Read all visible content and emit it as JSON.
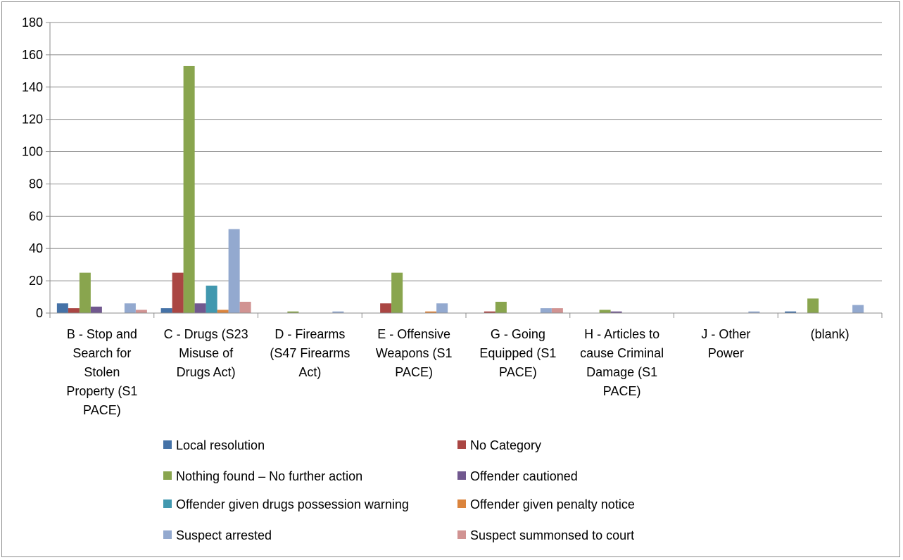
{
  "chart_data": {
    "type": "bar",
    "title": "",
    "xlabel": "",
    "ylabel": "",
    "ylim": [
      0,
      180
    ],
    "yticks": [
      0,
      20,
      40,
      60,
      80,
      100,
      120,
      140,
      160,
      180
    ],
    "grid": true,
    "legend_position": "bottom",
    "categories": [
      "B - Stop and Search for Stolen Property (S1 PACE)",
      "C - Drugs (S23 Misuse of Drugs Act)",
      "D - Firearms (S47 Firearms Act)",
      "E - Offensive Weapons (S1 PACE)",
      "G - Going Equipped (S1 PACE)",
      "H - Articles to cause Criminal Damage (S1 PACE)",
      "J - Other Power",
      "(blank)"
    ],
    "category_label_lines": [
      [
        "B - Stop and",
        "Search for",
        "Stolen",
        "Property (S1",
        "PACE)"
      ],
      [
        "C - Drugs (S23",
        "Misuse of",
        "Drugs Act)"
      ],
      [
        "D - Firearms",
        "(S47 Firearms",
        "Act)"
      ],
      [
        "E - Offensive",
        "Weapons (S1",
        "PACE)"
      ],
      [
        "G - Going",
        "Equipped (S1",
        "PACE)"
      ],
      [
        "H - Articles to",
        "cause Criminal",
        "Damage (S1",
        "PACE)"
      ],
      [
        "J - Other",
        "Power"
      ],
      [
        "(blank)"
      ]
    ],
    "series": [
      {
        "name": "Local resolution",
        "color": "#4572a7",
        "values": [
          6,
          3,
          0,
          0,
          0,
          0,
          0,
          1
        ]
      },
      {
        "name": "No Category",
        "color": "#aa4643",
        "values": [
          3,
          25,
          0,
          6,
          1,
          0,
          0,
          0
        ]
      },
      {
        "name": "Nothing found – No further action",
        "color": "#89a54e",
        "values": [
          25,
          153,
          1,
          25,
          7,
          2,
          0,
          9
        ]
      },
      {
        "name": "Offender cautioned",
        "color": "#71588f",
        "values": [
          4,
          6,
          0,
          0,
          0,
          1,
          0,
          0
        ]
      },
      {
        "name": "Offender given drugs possession warning",
        "color": "#4198af",
        "values": [
          0,
          17,
          0,
          0,
          0,
          0,
          0,
          0
        ]
      },
      {
        "name": "Offender given penalty notice",
        "color": "#db843d",
        "values": [
          0,
          2,
          0,
          1,
          0,
          0,
          0,
          0
        ]
      },
      {
        "name": "Suspect arrested",
        "color": "#93a9cf",
        "values": [
          6,
          52,
          1,
          6,
          3,
          0,
          1,
          5
        ]
      },
      {
        "name": "Suspect summonsed to court",
        "color": "#d19392",
        "values": [
          2,
          7,
          0,
          0,
          3,
          0,
          0,
          0
        ]
      }
    ]
  }
}
